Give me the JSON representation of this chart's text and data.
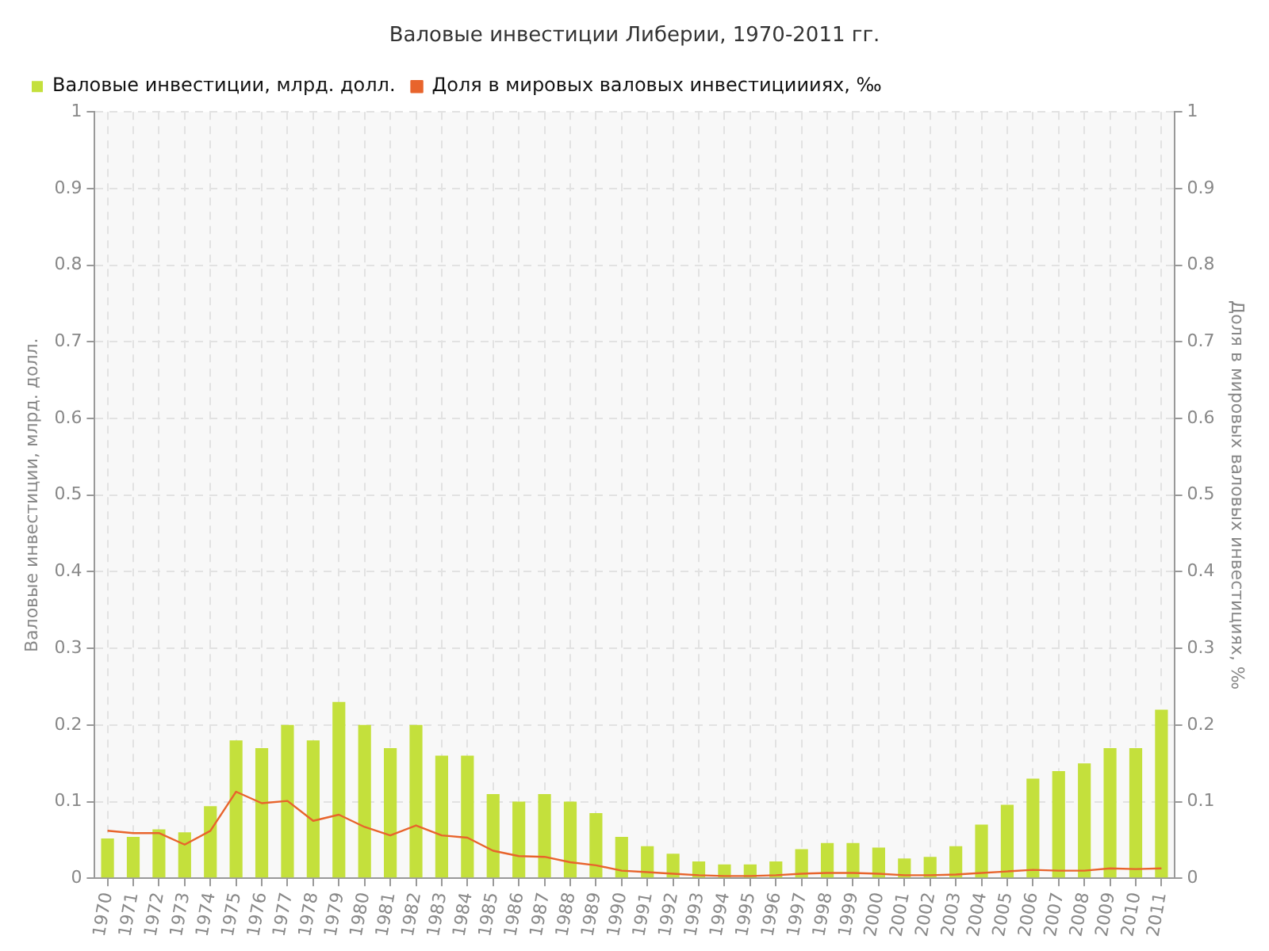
{
  "chart_data": {
    "type": "bar",
    "title": "Валовые инвестиции Либерии, 1970-2011 гг.",
    "ylabel": "Валовые инвестиции, млрд. долл.",
    "y2label": "Доля в мировых валовых инвестициях, ‰",
    "categories": [
      "1970",
      "1971",
      "1972",
      "1973",
      "1974",
      "1975",
      "1976",
      "1977",
      "1978",
      "1979",
      "1980",
      "1981",
      "1982",
      "1983",
      "1984",
      "1985",
      "1986",
      "1987",
      "1988",
      "1989",
      "1990",
      "1991",
      "1992",
      "1993",
      "1994",
      "1995",
      "1996",
      "1997",
      "1998",
      "1999",
      "2000",
      "2001",
      "2002",
      "2003",
      "2004",
      "2005",
      "2006",
      "2007",
      "2008",
      "2009",
      "2010",
      "2011"
    ],
    "series": [
      {
        "name": "Валовые инвестиции, млрд. долл.",
        "color": "#c4e03c",
        "values": [
          0.052,
          0.054,
          0.064,
          0.06,
          0.094,
          0.18,
          0.17,
          0.2,
          0.18,
          0.23,
          0.2,
          0.17,
          0.2,
          0.16,
          0.16,
          0.11,
          0.1,
          0.11,
          0.1,
          0.085,
          0.054,
          0.042,
          0.032,
          0.022,
          0.018,
          0.018,
          0.022,
          0.038,
          0.046,
          0.046,
          0.04,
          0.026,
          0.028,
          0.042,
          0.07,
          0.096,
          0.13,
          0.14,
          0.15,
          0.17,
          0.17,
          0.22
        ]
      },
      {
        "name": "Доля в мировых валовых инвестициииях, ‰",
        "type": "line",
        "axis": "y2",
        "color": "#e8642c",
        "values": [
          0.062,
          0.059,
          0.059,
          0.044,
          0.062,
          0.113,
          0.098,
          0.101,
          0.075,
          0.083,
          0.067,
          0.056,
          0.069,
          0.056,
          0.053,
          0.036,
          0.029,
          0.028,
          0.021,
          0.017,
          0.01,
          0.008,
          0.006,
          0.004,
          0.003,
          0.003,
          0.004,
          0.006,
          0.007,
          0.007,
          0.006,
          0.004,
          0.004,
          0.005,
          0.007,
          0.009,
          0.011,
          0.01,
          0.01,
          0.013,
          0.012,
          0.013
        ]
      }
    ],
    "ylim": [
      0,
      1
    ],
    "yticks": [
      0,
      0.1,
      0.2,
      0.3,
      0.4,
      0.5,
      0.6,
      0.7,
      0.8,
      0.9,
      1
    ],
    "y2lim": [
      0,
      1
    ],
    "y2ticks": [
      0,
      0.1,
      0.2,
      0.3,
      0.4,
      0.5,
      0.6,
      0.7,
      0.8,
      0.9,
      1
    ],
    "grid": true,
    "legend": "top left",
    "marker": "none"
  }
}
